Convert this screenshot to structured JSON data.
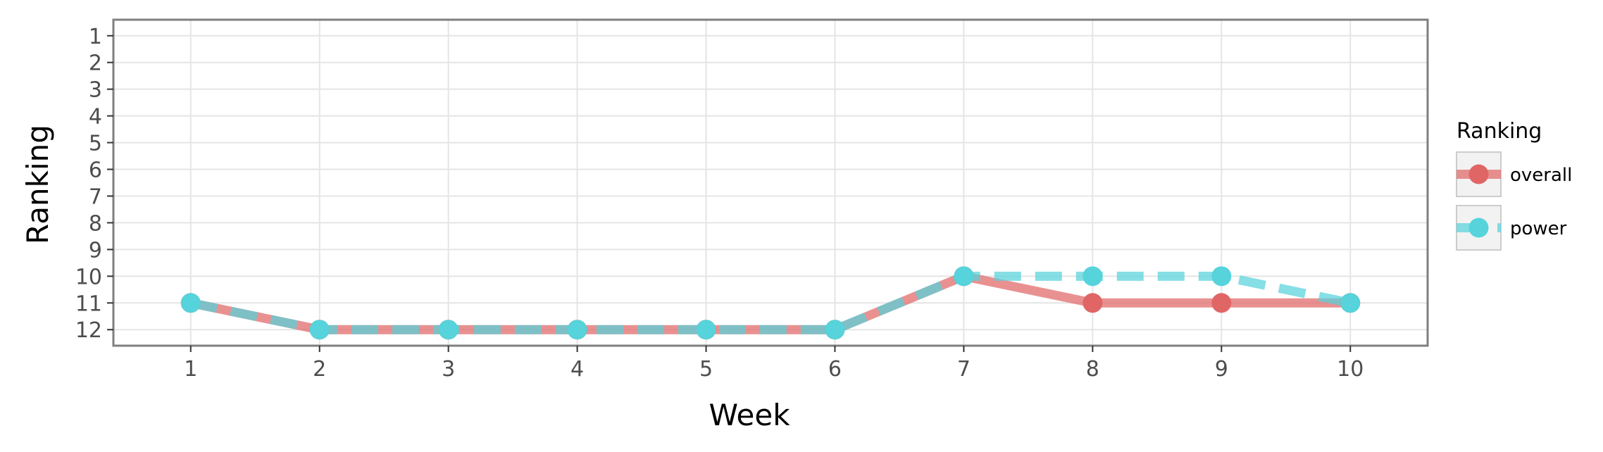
{
  "chart_data": {
    "type": "line",
    "xlabel": "Week",
    "ylabel": "Ranking",
    "x": [
      1,
      2,
      3,
      4,
      5,
      6,
      7,
      8,
      9,
      10
    ],
    "x_ticks": [
      "1",
      "2",
      "3",
      "4",
      "5",
      "6",
      "7",
      "8",
      "9",
      "10"
    ],
    "y_ticks": [
      "1",
      "2",
      "3",
      "4",
      "5",
      "6",
      "7",
      "8",
      "9",
      "10",
      "11",
      "12"
    ],
    "xlim": [
      0.4,
      10.6
    ],
    "ylim": [
      12.6,
      0.4
    ],
    "y_reversed": true,
    "grid": true,
    "legend": {
      "title": "Ranking",
      "placement": "right"
    },
    "series": [
      {
        "name": "overall",
        "line_style": "solid",
        "color": "#E06666",
        "values": [
          11,
          12,
          12,
          12,
          12,
          12,
          10,
          11,
          11,
          11
        ]
      },
      {
        "name": "power",
        "line_style": "dashed",
        "color": "#56D3DB",
        "values": [
          11,
          12,
          12,
          12,
          12,
          12,
          10,
          10,
          10,
          11
        ]
      }
    ]
  }
}
